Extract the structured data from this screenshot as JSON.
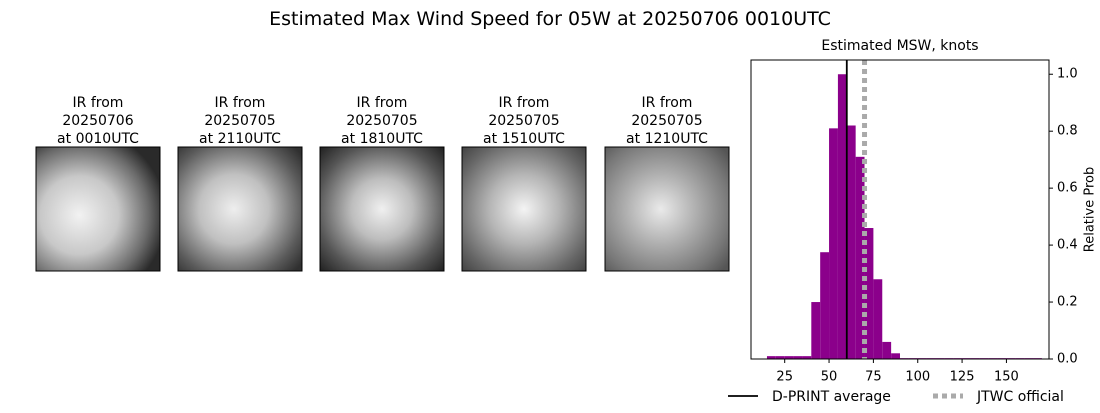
{
  "title": "Estimated Max Wind Speed for 05W at 20250706 0010UTC",
  "panels": [
    {
      "label": [
        "IR from",
        "20250706",
        "at 0010UTC"
      ]
    },
    {
      "label": [
        "IR from",
        "20250705",
        "at 2110UTC"
      ]
    },
    {
      "label": [
        "IR from",
        "20250705",
        "at 1810UTC"
      ]
    },
    {
      "label": [
        "IR from",
        "20250705",
        "at 1510UTC"
      ]
    },
    {
      "label": [
        "IR from",
        "20250705",
        "at 1210UTC"
      ]
    }
  ],
  "chart_data": {
    "type": "histogram",
    "title": "Estimated MSW, knots",
    "ylabel": "Relative Prob",
    "color": "#8b008b",
    "bins": [
      15,
      20,
      25,
      30,
      35,
      40,
      45,
      50,
      55,
      60,
      65,
      70,
      75,
      80,
      85,
      90,
      95,
      100,
      105,
      110,
      115,
      120,
      125,
      130,
      135,
      140,
      145,
      150,
      155,
      160,
      165,
      170
    ],
    "counts": [
      0.01,
      0.01,
      0.01,
      0.01,
      0.01,
      0.2,
      0.375,
      0.81,
      1.0,
      0.82,
      0.71,
      0.46,
      0.28,
      0.06,
      0.02,
      0.003,
      0.003,
      0.003,
      0.003,
      0.003,
      0.003,
      0.003,
      0.003,
      0.003,
      0.003,
      0.003,
      0.003,
      0.003,
      0.003,
      0.003,
      0.003
    ],
    "xlim": [
      6,
      174
    ],
    "ylim": [
      0,
      1.05
    ],
    "xticks": [
      25,
      50,
      75,
      100,
      125,
      150
    ],
    "yticks": [
      {
        "value": 0,
        "label": "0.0"
      },
      0.2,
      0.4,
      0.6,
      0.8,
      {
        "value": 1,
        "label": "1.0"
      }
    ],
    "lines": [
      {
        "name": "D-PRINT average",
        "x": 60,
        "color": "#000000",
        "style": "solid"
      },
      {
        "name": "JTWC official",
        "x": 70,
        "color": "#aaaaaa",
        "style": "dotted"
      }
    ]
  }
}
